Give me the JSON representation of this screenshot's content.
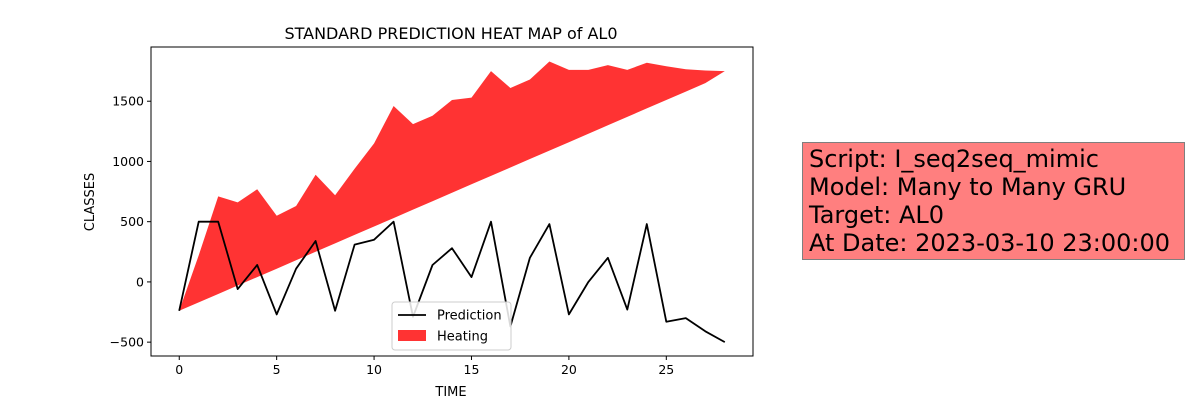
{
  "chart_data": {
    "type": "line",
    "title": "STANDARD PREDICTION HEAT MAP of AL0",
    "xlabel": "TIME",
    "ylabel": "CLASSES",
    "xlim": [
      -1.45,
      29.45
    ],
    "ylim": [
      -615,
      1950
    ],
    "xticks": [
      0,
      5,
      10,
      15,
      20,
      25
    ],
    "yticks": [
      -500,
      0,
      500,
      1000,
      1500
    ],
    "grid": false,
    "legend_position": "bottom-center",
    "series": [
      {
        "name": "Prediction",
        "kind": "line",
        "color": "#000000",
        "x": [
          0,
          1,
          2,
          3,
          4,
          5,
          6,
          7,
          8,
          9,
          10,
          11,
          12,
          13,
          14,
          15,
          16,
          17,
          18,
          19,
          20,
          21,
          22,
          23,
          24,
          25,
          26,
          27,
          28
        ],
        "values": [
          -240,
          500,
          500,
          -60,
          140,
          -270,
          110,
          340,
          -240,
          310,
          350,
          500,
          -290,
          140,
          280,
          40,
          500,
          -370,
          200,
          480,
          -270,
          0,
          200,
          -230,
          480,
          -330,
          -300,
          -410,
          -500
        ]
      },
      {
        "name": "Heating",
        "kind": "area",
        "color": "#ff0000",
        "x": [
          0,
          1,
          2,
          3,
          4,
          5,
          6,
          7,
          8,
          9,
          10,
          11,
          12,
          13,
          14,
          15,
          16,
          17,
          18,
          19,
          20,
          21,
          22,
          23,
          24,
          25,
          26,
          27,
          28
        ],
        "upper": [
          -240,
          220,
          710,
          660,
          770,
          550,
          630,
          890,
          720,
          940,
          1150,
          1460,
          1310,
          1380,
          1510,
          1530,
          1750,
          1610,
          1680,
          1830,
          1760,
          1760,
          1800,
          1760,
          1820,
          1790,
          1765,
          1755,
          1750
        ],
        "lower": [
          -240,
          -170,
          -100,
          -30,
          40,
          110,
          180,
          250,
          320,
          390,
          460,
          530,
          600,
          670,
          740,
          810,
          880,
          950,
          1020,
          1090,
          1160,
          1230,
          1300,
          1370,
          1440,
          1510,
          1580,
          1650,
          1750
        ]
      }
    ]
  },
  "info_box": {
    "lines": [
      "Script: I_seq2seq_mimic",
      "Model: Many to Many GRU",
      "Target: AL0",
      "At Date: 2023-03-10 23:00:00"
    ]
  }
}
